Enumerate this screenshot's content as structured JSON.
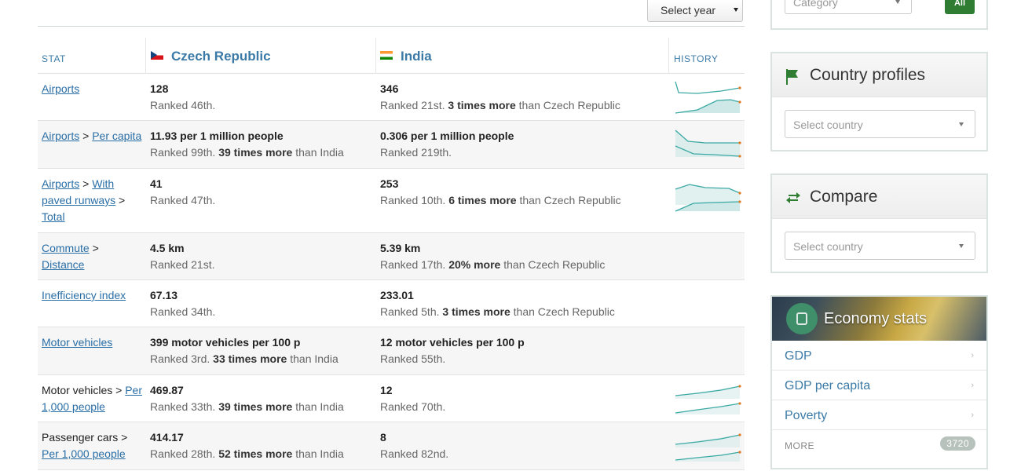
{
  "toolbar": {
    "year_select": "Select year"
  },
  "table": {
    "headers": {
      "stat": "STAT",
      "history": "HISTORY",
      "country_a": "Czech Republic",
      "country_b": "India"
    },
    "rows": [
      {
        "stat_link": "Airports",
        "a_value": "128",
        "a_rank": "Ranked 46th.",
        "a_extra_bold": "",
        "a_extra": "",
        "b_value": "346",
        "b_rank": "Ranked 21st.",
        "b_extra_bold": "3 times more",
        "b_extra": " than Czech Republic"
      },
      {
        "stat_link": "Airports",
        "stat_sep": " > ",
        "stat_link2": "Per capita",
        "a_value": "11.93 per 1 million people",
        "a_rank": "Ranked 99th.",
        "a_extra_bold": "39 times more",
        "a_extra": " than India",
        "b_value": "0.306 per 1 million people",
        "b_rank": "Ranked 219th.",
        "b_extra_bold": "",
        "b_extra": ""
      },
      {
        "stat_link": "Airports",
        "stat_sep": " > ",
        "stat_link2": "With paved runways",
        "stat_sep2": " > ",
        "stat_link3": "Total",
        "a_value": "41",
        "a_rank": "Ranked 47th.",
        "a_extra_bold": "",
        "a_extra": "",
        "b_value": "253",
        "b_rank": "Ranked 10th.",
        "b_extra_bold": "6 times more",
        "b_extra": " than Czech Republic"
      },
      {
        "stat_link": "Commute",
        "stat_sep": " > ",
        "stat_link2": "Distance",
        "a_value": "4.5 km",
        "a_rank": "Ranked 21st.",
        "a_extra_bold": "",
        "a_extra": "",
        "b_value": "5.39 km",
        "b_rank": "Ranked 17th.",
        "b_extra_bold": "20% more",
        "b_extra": " than Czech Republic"
      },
      {
        "stat_link": "Inefficiency index",
        "a_value": "67.13",
        "a_rank": "Ranked 34th.",
        "a_extra_bold": "",
        "a_extra": "",
        "b_value": "233.01",
        "b_rank": "Ranked 5th.",
        "b_extra_bold": "3 times more",
        "b_extra": " than Czech Republic"
      },
      {
        "stat_link": "Motor vehicles",
        "a_value": "399 motor vehicles per 100 p",
        "a_rank": "Ranked 3rd.",
        "a_extra_bold": "33 times more",
        "a_extra": " than India",
        "b_value": "12 motor vehicles per 100 p",
        "b_rank": "Ranked 55th.",
        "b_extra_bold": "",
        "b_extra": ""
      },
      {
        "stat_text": "Motor vehicles > ",
        "stat_link2": "Per 1,000 people",
        "a_value": "469.87",
        "a_rank": "Ranked 33th.",
        "a_extra_bold": "39 times more",
        "a_extra": " than India",
        "b_value": "12",
        "b_rank": "Ranked 70th.",
        "b_extra_bold": "",
        "b_extra": ""
      },
      {
        "stat_text": "Passenger cars > ",
        "stat_link2": "Per 1,000 people",
        "a_value": "414.17",
        "a_rank": "Ranked 28th.",
        "a_extra_bold": "52 times more",
        "a_extra": " than India",
        "b_value": "8",
        "b_rank": "Ranked 82nd.",
        "b_extra_bold": "",
        "b_extra": ""
      }
    ]
  },
  "sidebar": {
    "category_select": "Category",
    "all_button": "All",
    "country_profiles": {
      "title": "Country profiles",
      "placeholder": "Select country"
    },
    "compare": {
      "title": "Compare",
      "placeholder": "Select country"
    },
    "economy": {
      "title": "Economy stats",
      "items": [
        "GDP",
        "GDP per capita",
        "Poverty"
      ],
      "more_label": "MORE",
      "more_count": "3720"
    }
  },
  "colors": {
    "link": "#2a6ea6",
    "header_text": "#3b7aa6",
    "accent_green": "#2e7d32",
    "spark_fill": "#cde8e6",
    "spark_line": "#3aa9a4"
  }
}
